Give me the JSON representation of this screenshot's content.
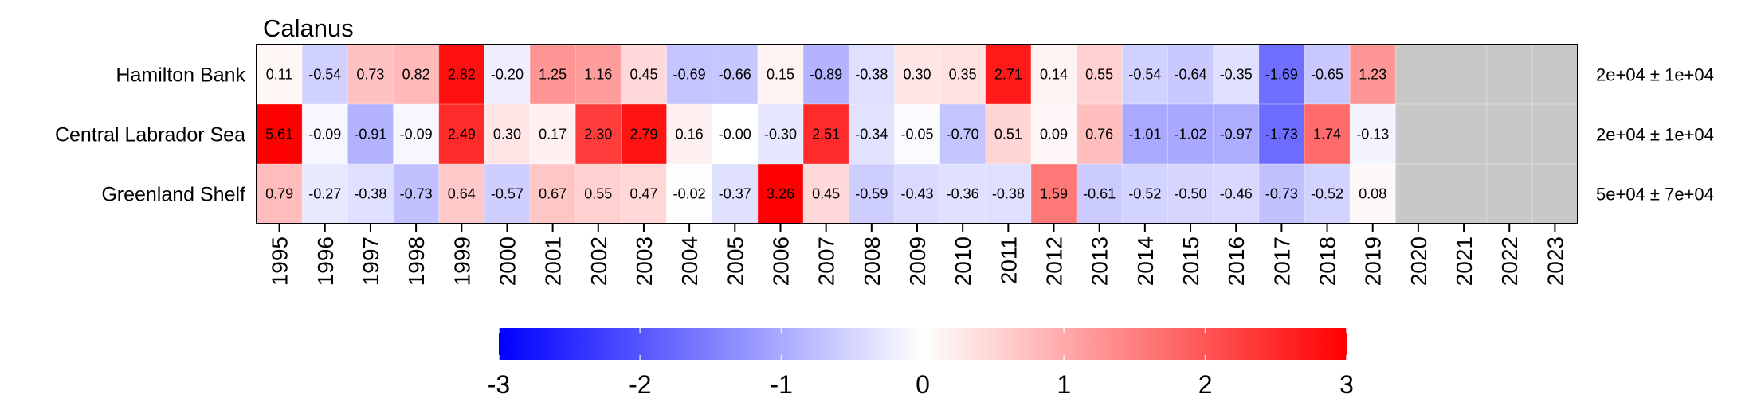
{
  "chart_data": {
    "type": "heatmap",
    "title": "Calanus",
    "x": [
      "1995",
      "1996",
      "1997",
      "1998",
      "1999",
      "2000",
      "2001",
      "2002",
      "2003",
      "2004",
      "2005",
      "2006",
      "2007",
      "2008",
      "2009",
      "2010",
      "2011",
      "2012",
      "2013",
      "2014",
      "2015",
      "2016",
      "2017",
      "2018",
      "2019",
      "2020",
      "2021",
      "2022",
      "2023"
    ],
    "rows": [
      "Hamilton Bank",
      "Central Labrador Sea",
      "Greenland Shelf"
    ],
    "values": [
      [
        0.11,
        -0.54,
        0.73,
        0.82,
        2.82,
        -0.2,
        1.25,
        1.16,
        0.45,
        -0.69,
        -0.66,
        0.15,
        -0.89,
        -0.38,
        0.3,
        0.35,
        2.71,
        0.14,
        0.55,
        -0.54,
        -0.64,
        -0.35,
        -1.69,
        -0.65,
        1.23,
        null,
        null,
        null,
        null
      ],
      [
        5.61,
        -0.09,
        -0.91,
        -0.09,
        2.49,
        0.3,
        0.17,
        2.3,
        2.79,
        0.16,
        -0.0,
        -0.3,
        2.51,
        -0.34,
        -0.05,
        -0.7,
        0.51,
        0.09,
        0.76,
        -1.01,
        -1.02,
        -0.97,
        -1.73,
        1.74,
        -0.13,
        null,
        null,
        null,
        null
      ],
      [
        0.79,
        -0.27,
        -0.38,
        -0.73,
        0.64,
        -0.57,
        0.67,
        0.55,
        0.47,
        -0.02,
        -0.37,
        3.26,
        0.45,
        -0.59,
        -0.43,
        -0.36,
        -0.38,
        1.59,
        -0.61,
        -0.52,
        -0.5,
        -0.46,
        -0.73,
        -0.52,
        0.08,
        null,
        null,
        null,
        null
      ]
    ],
    "cell_labels": [
      [
        "0.11",
        "-0.54",
        "0.73",
        "0.82",
        "2.82",
        "-0.20",
        "1.25",
        "1.16",
        "0.45",
        "-0.69",
        "-0.66",
        "0.15",
        "-0.89",
        "-0.38",
        "0.30",
        "0.35",
        "2.71",
        "0.14",
        "0.55",
        "-0.54",
        "-0.64",
        "-0.35",
        "-1.69",
        "-0.65",
        "1.23",
        "",
        "",
        "",
        ""
      ],
      [
        "5.61",
        "-0.09",
        "-0.91",
        "-0.09",
        "2.49",
        "0.30",
        "0.17",
        "2.30",
        "2.79",
        "0.16",
        "-0.00",
        "-0.30",
        "2.51",
        "-0.34",
        "-0.05",
        "-0.70",
        "0.51",
        "0.09",
        "0.76",
        "-1.01",
        "-1.02",
        "-0.97",
        "-1.73",
        "1.74",
        "-0.13",
        "",
        "",
        "",
        ""
      ],
      [
        "0.79",
        "-0.27",
        "-0.38",
        "-0.73",
        "0.64",
        "-0.57",
        "0.67",
        "0.55",
        "0.47",
        "-0.02",
        "-0.37",
        "3.26",
        "0.45",
        "-0.59",
        "-0.43",
        "-0.36",
        "-0.38",
        "1.59",
        "-0.61",
        "-0.52",
        "-0.50",
        "-0.46",
        "-0.73",
        "-0.52",
        "0.08",
        "",
        "",
        "",
        ""
      ]
    ],
    "row_stats": [
      "2e+04 ± 1e+04",
      "2e+04 ± 1e+04",
      "5e+04 ± 7e+04"
    ],
    "color_scale": {
      "min": -3,
      "max": 3,
      "low_color": "#0000ff",
      "mid_color": "#ffffff",
      "high_color": "#ff0000",
      "missing_color": "#c8c8c8",
      "ticks": [
        "-3",
        "-2",
        "-1",
        "0",
        "1",
        "2",
        "3"
      ]
    }
  }
}
